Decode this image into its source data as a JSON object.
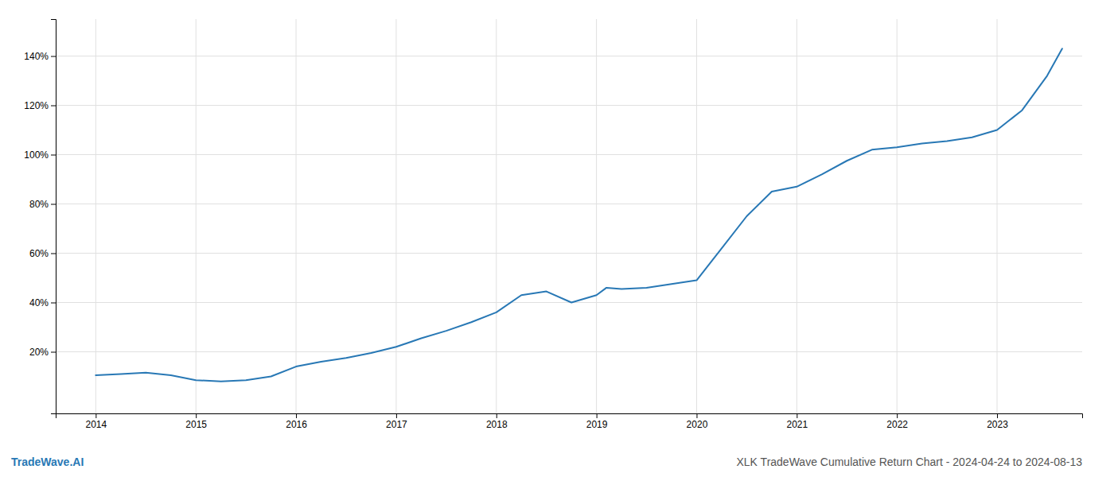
{
  "chart_data": {
    "type": "line",
    "title": "XLK TradeWave Cumulative Return Chart - 2024-04-24 to 2024-08-13",
    "watermark": "TradeWave.AI",
    "color": "#2878b5",
    "x": [
      2014.0,
      2014.25,
      2014.5,
      2014.75,
      2015.0,
      2015.25,
      2015.5,
      2015.75,
      2016.0,
      2016.25,
      2016.5,
      2016.75,
      2017.0,
      2017.25,
      2017.5,
      2017.75,
      2018.0,
      2018.25,
      2018.5,
      2018.75,
      2019.0,
      2019.1,
      2019.25,
      2019.5,
      2019.75,
      2020.0,
      2020.25,
      2020.5,
      2020.75,
      2021.0,
      2021.25,
      2021.5,
      2021.75,
      2022.0,
      2022.25,
      2022.5,
      2022.75,
      2023.0,
      2023.25,
      2023.5,
      2023.65
    ],
    "values": [
      10.5,
      11.0,
      11.5,
      10.5,
      8.5,
      8.0,
      8.5,
      10.0,
      14.0,
      16.0,
      17.5,
      19.5,
      22.0,
      25.5,
      28.5,
      32.0,
      36.0,
      43.0,
      44.5,
      40.0,
      43.0,
      46.0,
      45.5,
      46.0,
      47.5,
      49.0,
      62.0,
      75.0,
      85.0,
      87.0,
      92.0,
      97.5,
      102.0,
      103.0,
      104.5,
      105.5,
      107.0,
      110.0,
      118.0,
      132.0,
      143.0
    ],
    "xlim": [
      2013.6,
      2023.85
    ],
    "ylim": [
      -5,
      155
    ],
    "xticks": [
      2014,
      2015,
      2016,
      2017,
      2018,
      2019,
      2020,
      2021,
      2022,
      2023
    ],
    "yticks": [
      {
        "value": 20,
        "label": "20%"
      },
      {
        "value": 40,
        "label": "40%"
      },
      {
        "value": 60,
        "label": "60%"
      },
      {
        "value": 80,
        "label": "80%"
      },
      {
        "value": 100,
        "label": "100%"
      },
      {
        "value": 120,
        "label": "120%"
      },
      {
        "value": 140,
        "label": "140%"
      }
    ],
    "grid": true
  }
}
